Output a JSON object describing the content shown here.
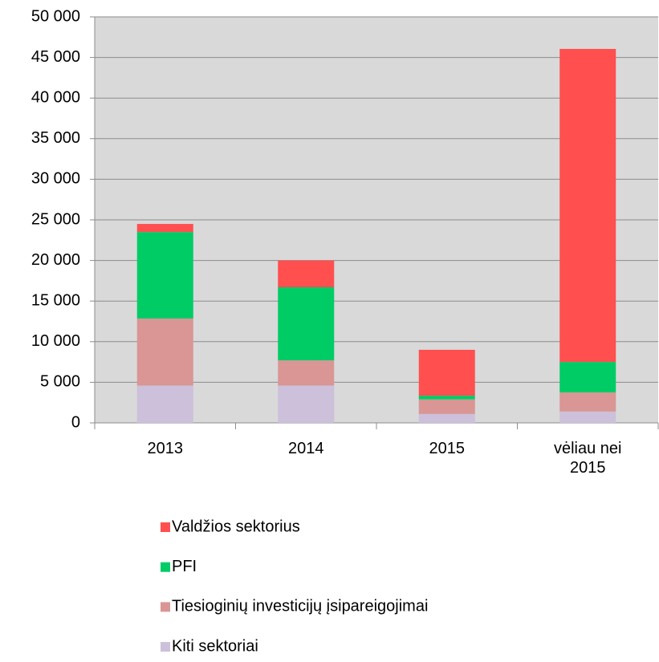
{
  "chart_data": {
    "type": "stacked_bar",
    "categories": [
      "2013",
      "2014",
      "2015",
      "vėliau nei 2015"
    ],
    "series": [
      {
        "name": "Valdžios sektorius",
        "color": "#ff4f4f",
        "values": [
          1000,
          3300,
          5650,
          38550
        ]
      },
      {
        "name": "PFI",
        "color": "#00cc66",
        "values": [
          10650,
          9000,
          450,
          3750
        ]
      },
      {
        "name": "Tiesioginių investicijų įsipareigojimai",
        "color": "#d99694",
        "values": [
          8250,
          3100,
          1800,
          2350
        ]
      },
      {
        "name": "Kiti sektoriai",
        "color": "#ccc0da",
        "values": [
          4600,
          4600,
          1100,
          1400
        ]
      }
    ],
    "ylim": [
      0,
      50000
    ],
    "yticks": [
      0,
      {
        "value": 5000,
        "label": "5 000"
      },
      {
        "value": 10000,
        "label": "10 000"
      },
      {
        "value": 15000,
        "label": "15 000"
      },
      {
        "value": 20000,
        "label": "20 000"
      },
      {
        "value": 25000,
        "label": "25 000"
      },
      {
        "value": 30000,
        "label": "30 000"
      },
      {
        "value": 35000,
        "label": "35 000"
      },
      {
        "value": 40000,
        "label": "40 000"
      },
      {
        "value": 45000,
        "label": "45 000"
      },
      {
        "value": 50000,
        "label": "50 000"
      }
    ],
    "grid": true,
    "legend": "bottom"
  }
}
